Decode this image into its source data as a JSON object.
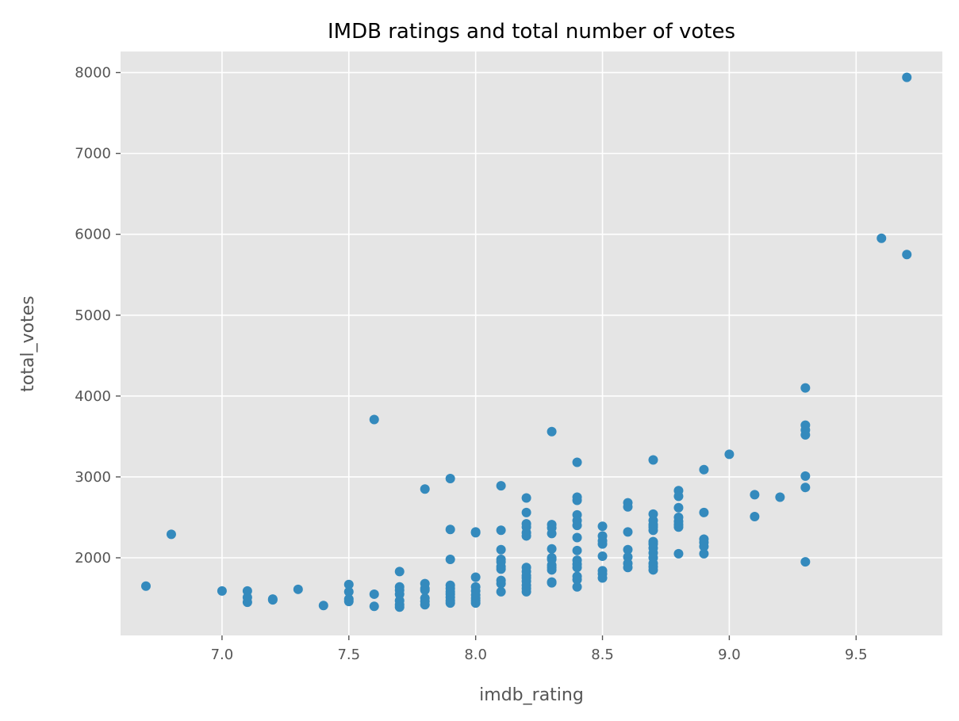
{
  "chart_data": {
    "type": "scatter",
    "title": "IMDB ratings and total number of votes",
    "xlabel": "imdb_rating",
    "ylabel": "total_votes",
    "xlim": [
      6.6,
      9.84
    ],
    "ylim": [
      1040,
      8260
    ],
    "xticks": [
      "7.0",
      "7.5",
      "8.0",
      "8.5",
      "9.0",
      "9.5"
    ],
    "yticks": [
      "2000",
      "3000",
      "4000",
      "5000",
      "6000",
      "7000",
      "8000"
    ],
    "grid": true,
    "background_color": "#e5e5e5",
    "grid_color": "#ffffff",
    "marker_color": "#348abd",
    "points": [
      [
        6.7,
        1650
      ],
      [
        6.8,
        2290
      ],
      [
        7.0,
        1590
      ],
      [
        7.1,
        1590
      ],
      [
        7.1,
        1510
      ],
      [
        7.1,
        1450
      ],
      [
        7.2,
        1490
      ],
      [
        7.2,
        1480
      ],
      [
        7.3,
        1610
      ],
      [
        7.4,
        1410
      ],
      [
        7.5,
        1670
      ],
      [
        7.5,
        1580
      ],
      [
        7.5,
        1490
      ],
      [
        7.5,
        1460
      ],
      [
        7.6,
        3710
      ],
      [
        7.6,
        1550
      ],
      [
        7.6,
        1400
      ],
      [
        7.7,
        1830
      ],
      [
        7.7,
        1640
      ],
      [
        7.7,
        1600
      ],
      [
        7.7,
        1550
      ],
      [
        7.7,
        1470
      ],
      [
        7.7,
        1420
      ],
      [
        7.7,
        1390
      ],
      [
        7.8,
        2850
      ],
      [
        7.8,
        1680
      ],
      [
        7.8,
        1620
      ],
      [
        7.8,
        1600
      ],
      [
        7.8,
        1500
      ],
      [
        7.8,
        1460
      ],
      [
        7.8,
        1420
      ],
      [
        7.9,
        2980
      ],
      [
        7.9,
        2350
      ],
      [
        7.9,
        1980
      ],
      [
        7.9,
        1660
      ],
      [
        7.9,
        1620
      ],
      [
        7.9,
        1580
      ],
      [
        7.9,
        1550
      ],
      [
        7.9,
        1510
      ],
      [
        7.9,
        1470
      ],
      [
        7.9,
        1440
      ],
      [
        8.0,
        2320
      ],
      [
        8.0,
        2310
      ],
      [
        8.0,
        1760
      ],
      [
        8.0,
        1640
      ],
      [
        8.0,
        1590
      ],
      [
        8.0,
        1540
      ],
      [
        8.0,
        1500
      ],
      [
        8.0,
        1470
      ],
      [
        8.0,
        1440
      ],
      [
        8.1,
        2890
      ],
      [
        8.1,
        2340
      ],
      [
        8.1,
        2100
      ],
      [
        8.1,
        1980
      ],
      [
        8.1,
        1950
      ],
      [
        8.1,
        1890
      ],
      [
        8.1,
        1860
      ],
      [
        8.1,
        1720
      ],
      [
        8.1,
        1680
      ],
      [
        8.1,
        1580
      ],
      [
        8.2,
        2740
      ],
      [
        8.2,
        2560
      ],
      [
        8.2,
        2420
      ],
      [
        8.2,
        2380
      ],
      [
        8.2,
        2310
      ],
      [
        8.2,
        2270
      ],
      [
        8.2,
        1880
      ],
      [
        8.2,
        1830
      ],
      [
        8.2,
        1780
      ],
      [
        8.2,
        1750
      ],
      [
        8.2,
        1710
      ],
      [
        8.2,
        1660
      ],
      [
        8.2,
        1620
      ],
      [
        8.2,
        1580
      ],
      [
        8.3,
        3560
      ],
      [
        8.3,
        2410
      ],
      [
        8.3,
        2370
      ],
      [
        8.3,
        2300
      ],
      [
        8.3,
        2110
      ],
      [
        8.3,
        2000
      ],
      [
        8.3,
        1980
      ],
      [
        8.3,
        1910
      ],
      [
        8.3,
        1880
      ],
      [
        8.3,
        1850
      ],
      [
        8.3,
        1700
      ],
      [
        8.3,
        1690
      ],
      [
        8.4,
        3180
      ],
      [
        8.4,
        2750
      ],
      [
        8.4,
        2710
      ],
      [
        8.4,
        2530
      ],
      [
        8.4,
        2460
      ],
      [
        8.4,
        2400
      ],
      [
        8.4,
        2250
      ],
      [
        8.4,
        2090
      ],
      [
        8.4,
        1970
      ],
      [
        8.4,
        1920
      ],
      [
        8.4,
        1880
      ],
      [
        8.4,
        1770
      ],
      [
        8.4,
        1730
      ],
      [
        8.4,
        1640
      ],
      [
        8.5,
        2390
      ],
      [
        8.5,
        2270
      ],
      [
        8.5,
        2210
      ],
      [
        8.5,
        2170
      ],
      [
        8.5,
        2020
      ],
      [
        8.5,
        1840
      ],
      [
        8.5,
        1800
      ],
      [
        8.5,
        1750
      ],
      [
        8.6,
        2680
      ],
      [
        8.6,
        2630
      ],
      [
        8.6,
        2320
      ],
      [
        8.6,
        2100
      ],
      [
        8.6,
        2010
      ],
      [
        8.6,
        1930
      ],
      [
        8.6,
        1880
      ],
      [
        8.7,
        3210
      ],
      [
        8.7,
        2540
      ],
      [
        8.7,
        2460
      ],
      [
        8.7,
        2410
      ],
      [
        8.7,
        2380
      ],
      [
        8.7,
        2340
      ],
      [
        8.7,
        2200
      ],
      [
        8.7,
        2170
      ],
      [
        8.7,
        2120
      ],
      [
        8.7,
        2060
      ],
      [
        8.7,
        2000
      ],
      [
        8.7,
        1930
      ],
      [
        8.7,
        1890
      ],
      [
        8.7,
        1850
      ],
      [
        8.8,
        2830
      ],
      [
        8.8,
        2760
      ],
      [
        8.8,
        2620
      ],
      [
        8.8,
        2500
      ],
      [
        8.8,
        2450
      ],
      [
        8.8,
        2410
      ],
      [
        8.8,
        2380
      ],
      [
        8.8,
        2050
      ],
      [
        8.9,
        3090
      ],
      [
        8.9,
        2560
      ],
      [
        8.9,
        2230
      ],
      [
        8.9,
        2190
      ],
      [
        8.9,
        2140
      ],
      [
        8.9,
        2050
      ],
      [
        9.0,
        3280
      ],
      [
        9.1,
        2780
      ],
      [
        9.1,
        2510
      ],
      [
        9.2,
        2750
      ],
      [
        9.3,
        4100
      ],
      [
        9.3,
        3640
      ],
      [
        9.3,
        3580
      ],
      [
        9.3,
        3520
      ],
      [
        9.3,
        3010
      ],
      [
        9.3,
        2870
      ],
      [
        9.3,
        1950
      ],
      [
        9.6,
        5950
      ],
      [
        9.7,
        7940
      ],
      [
        9.7,
        5750
      ]
    ]
  }
}
